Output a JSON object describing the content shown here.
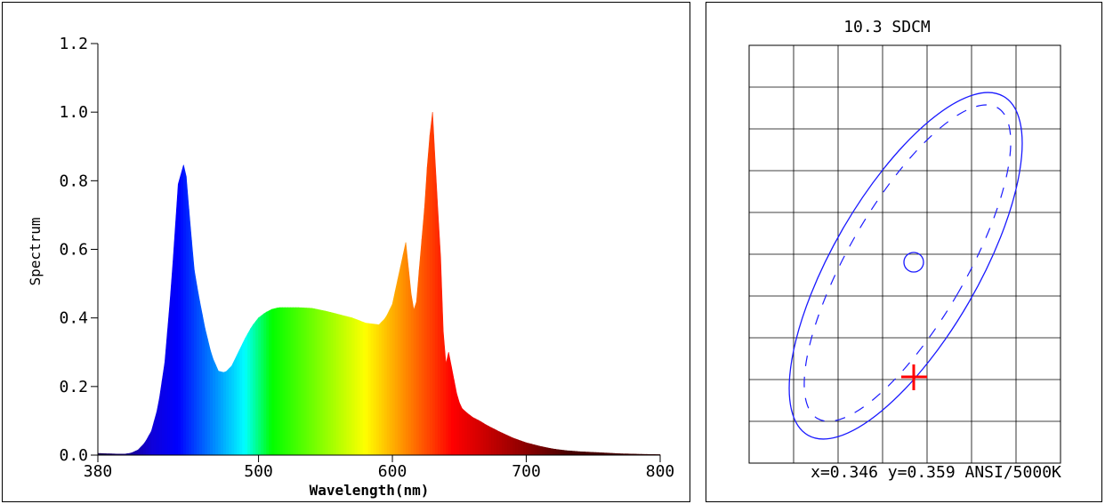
{
  "chart_data": [
    {
      "type": "area",
      "title": "",
      "xlabel": "Wavelength(nm)",
      "ylabel": "Spectrum",
      "xlim": [
        380,
        800
      ],
      "ylim": [
        0,
        1.2
      ],
      "x_ticks": [
        "380",
        "500",
        "600",
        "700",
        "800"
      ],
      "y_ticks": [
        "0.0",
        "0.2",
        "0.4",
        "0.6",
        "0.8",
        "1.0",
        "1.2"
      ],
      "fill": "wavelength-colored spectrum",
      "series": [
        {
          "x": [
            380,
            395,
            400,
            405,
            410,
            415,
            420,
            425,
            430,
            435,
            440,
            445,
            449,
            452,
            455,
            460,
            465,
            470,
            475,
            480,
            485,
            490,
            495,
            500,
            505,
            510,
            515,
            520,
            530,
            540,
            550,
            560,
            570,
            580,
            590,
            595,
            600,
            605,
            610,
            614,
            617,
            620,
            624,
            627,
            630,
            633,
            636,
            639,
            642,
            645,
            648,
            651,
            655,
            660,
            665,
            670,
            675,
            680,
            690,
            700,
            710,
            720,
            730,
            740,
            750,
            760,
            770,
            780,
            790,
            800
          ],
          "y": [
            0.005,
            0.003,
            0.003,
            0.006,
            0.015,
            0.035,
            0.07,
            0.14,
            0.27,
            0.5,
            0.79,
            0.86,
            0.67,
            0.54,
            0.47,
            0.37,
            0.29,
            0.245,
            0.24,
            0.26,
            0.3,
            0.34,
            0.375,
            0.4,
            0.415,
            0.425,
            0.43,
            0.43,
            0.43,
            0.428,
            0.42,
            0.41,
            0.4,
            0.385,
            0.38,
            0.4,
            0.44,
            0.53,
            0.62,
            0.47,
            0.4,
            0.54,
            0.72,
            0.9,
            1.0,
            0.78,
            0.58,
            0.25,
            0.3,
            0.24,
            0.18,
            0.14,
            0.125,
            0.11,
            0.1,
            0.088,
            0.078,
            0.068,
            0.05,
            0.036,
            0.026,
            0.018,
            0.013,
            0.01,
            0.008,
            0.006,
            0.004,
            0.003,
            0.002,
            0.0015
          ]
        }
      ]
    },
    {
      "type": "diagram",
      "title": "10.3 SDCM",
      "caption": "x=0.346 y=0.359 ANSI/5000K",
      "grid": true,
      "legend": "none",
      "markers": {
        "target_center": "circle",
        "measured_point": "cross"
      },
      "outlines": [
        "solid ellipse",
        "dashed ellipse"
      ],
      "colors": {
        "ellipse": "#1a1aff",
        "marker_circle": "#1a1aff",
        "marker_cross": "#ff0000"
      }
    }
  ]
}
